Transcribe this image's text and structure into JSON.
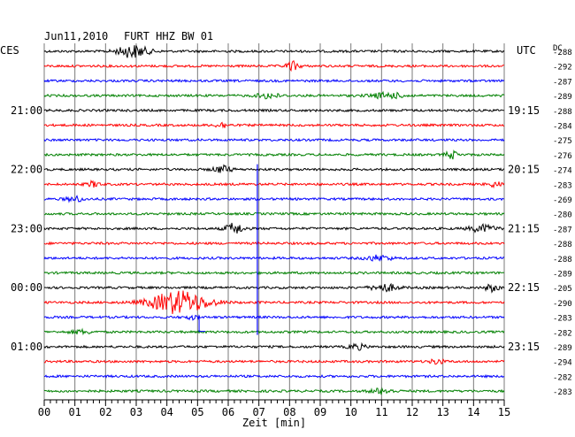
{
  "header": {
    "date": "Jun11,2010",
    "station": "FURT HHZ BW 01",
    "left_zone": "CES",
    "right_zone": "UTC",
    "dc_label": "DC"
  },
  "chart_data": {
    "type": "line",
    "xlabel": "Zeit [min]",
    "xlim": [
      0,
      15
    ],
    "x_ticks": [
      "00",
      "01",
      "02",
      "03",
      "04",
      "05",
      "06",
      "07",
      "08",
      "09",
      "10",
      "11",
      "12",
      "13",
      "14",
      "15"
    ],
    "trace_colors": [
      "#000000",
      "#ff0000",
      "#0000ff",
      "#008000"
    ],
    "left_time_labels": [
      {
        "trace": 4,
        "label": "21:00"
      },
      {
        "trace": 8,
        "label": "22:00"
      },
      {
        "trace": 12,
        "label": "23:00"
      },
      {
        "trace": 16,
        "label": "00:00"
      },
      {
        "trace": 20,
        "label": "01:00"
      }
    ],
    "right_time_labels": [
      {
        "trace": 4,
        "label": "19:15"
      },
      {
        "trace": 8,
        "label": "20:15"
      },
      {
        "trace": 12,
        "label": "21:15"
      },
      {
        "trace": 16,
        "label": "22:15"
      },
      {
        "trace": 20,
        "label": "23:15"
      }
    ],
    "dc_offsets": [
      "-288",
      "-292",
      "-287",
      "-289",
      "-288",
      "-284",
      "-275",
      "-276",
      "-274",
      "-283",
      "-269",
      "-280",
      "-287",
      "-288",
      "-288",
      "-289",
      "-205",
      "-290",
      "-283",
      "-282",
      "-289",
      "-294",
      "-282",
      "-283"
    ],
    "events": [
      {
        "trace": 0,
        "t": 2.9,
        "amp": 7,
        "width": 0.7,
        "note": "large burst"
      },
      {
        "trace": 1,
        "t": 8.1,
        "amp": 5,
        "width": 0.3
      },
      {
        "trace": 3,
        "t": 7.3,
        "amp": 3,
        "width": 0.5
      },
      {
        "trace": 3,
        "t": 11.2,
        "amp": 3,
        "width": 0.8
      },
      {
        "trace": 5,
        "t": 5.8,
        "amp": 3,
        "width": 0.3
      },
      {
        "trace": 7,
        "t": 13.3,
        "amp": 4,
        "width": 0.3
      },
      {
        "trace": 8,
        "t": 5.8,
        "amp": 4,
        "width": 0.4
      },
      {
        "trace": 9,
        "t": 1.6,
        "amp": 3,
        "width": 0.3
      },
      {
        "trace": 9,
        "t": 14.7,
        "amp": 3,
        "width": 0.3
      },
      {
        "trace": 10,
        "t": 1.0,
        "amp": 3,
        "width": 0.4
      },
      {
        "trace": 12,
        "t": 6.2,
        "amp": 6,
        "width": 0.4
      },
      {
        "trace": 12,
        "t": 14.3,
        "amp": 4,
        "width": 0.6
      },
      {
        "trace": 14,
        "t": 10.9,
        "amp": 3,
        "width": 0.6
      },
      {
        "trace": 16,
        "t": 11.1,
        "amp": 4,
        "width": 0.6
      },
      {
        "trace": 16,
        "t": 14.6,
        "amp": 4,
        "width": 0.3
      },
      {
        "trace": 17,
        "t": 4.4,
        "amp": 13,
        "width": 1.3,
        "note": "large red earthquake burst"
      },
      {
        "trace": 18,
        "t": 4.8,
        "amp": 2,
        "width": 0.3
      },
      {
        "trace": 19,
        "t": 1.2,
        "amp": 2,
        "width": 0.5
      },
      {
        "trace": 20,
        "t": 10.2,
        "amp": 3,
        "width": 0.4
      },
      {
        "trace": 21,
        "t": 12.8,
        "amp": 3,
        "width": 0.3
      },
      {
        "trace": 23,
        "t": 11.0,
        "amp": 3,
        "width": 0.5
      }
    ],
    "glitch": {
      "trace": 8,
      "t": 6.95,
      "bottom_trace": 18.6
    }
  }
}
